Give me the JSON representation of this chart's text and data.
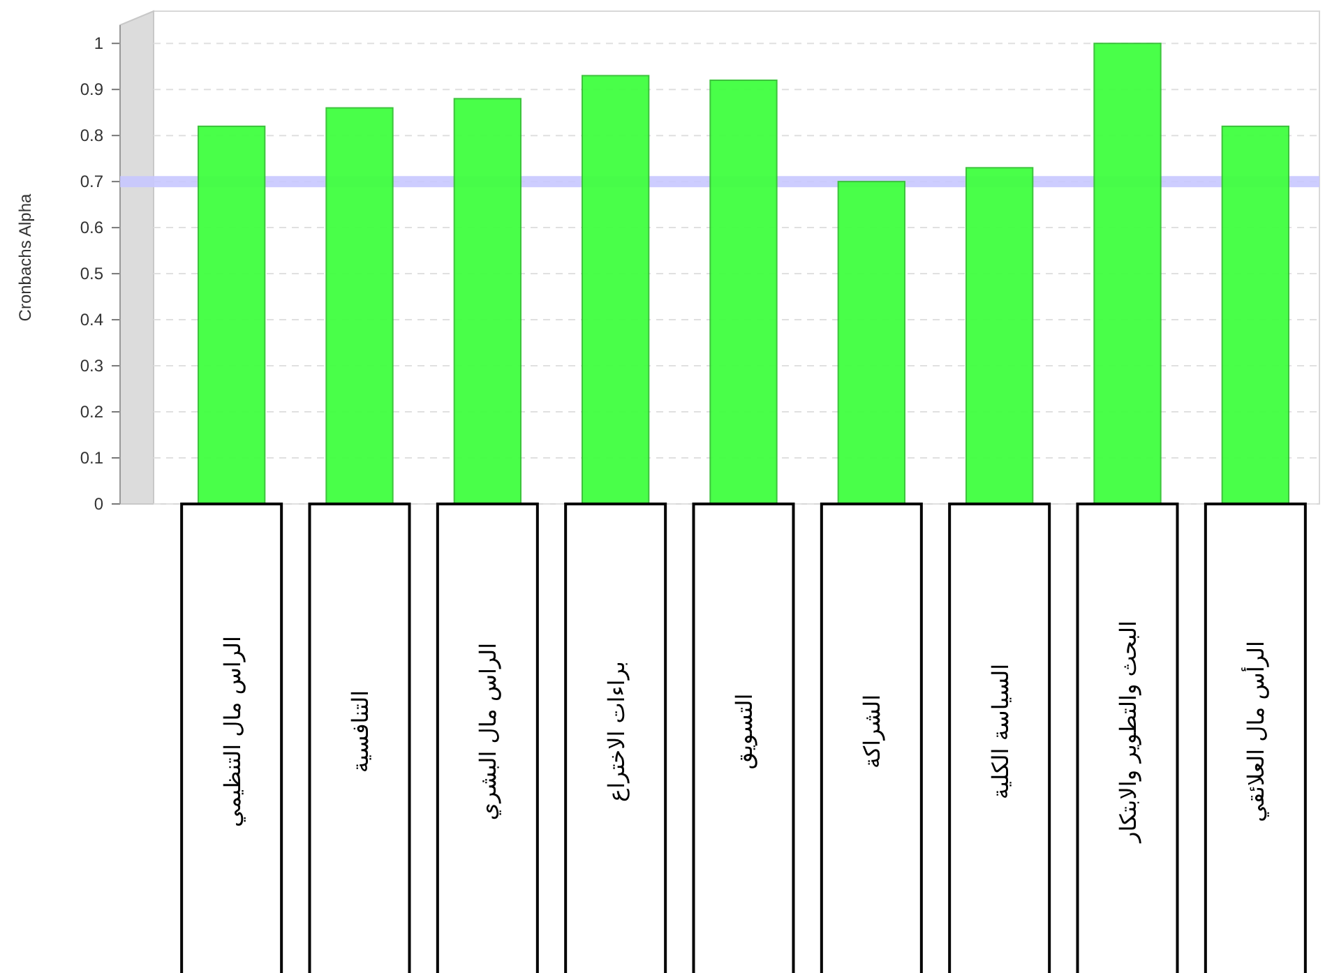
{
  "chart_data": {
    "type": "bar",
    "categories": [
      "الراس مال التنظيمي",
      "التنافسية",
      "الراس مال البشري",
      "براءات الاختراع",
      "التسويق",
      "الشراكة",
      "السياسة الكلية",
      "البحث والتطوير والابتكار",
      "الرأس مال العلائقي"
    ],
    "values": [
      0.82,
      0.86,
      0.88,
      0.93,
      0.92,
      0.7,
      0.73,
      1.0,
      0.82
    ],
    "color": "#40ff40",
    "ylabel": "Cronbachs Alpha",
    "ylim": [
      0,
      1.07
    ],
    "yticks": [
      0,
      0.1,
      0.2,
      0.3,
      0.4,
      0.5,
      0.6,
      0.7,
      0.8,
      0.9,
      1
    ],
    "grid": "y",
    "ref_lines": [
      {
        "axis": "y",
        "value": 0.7,
        "color": "#c8c8ff"
      }
    ]
  }
}
